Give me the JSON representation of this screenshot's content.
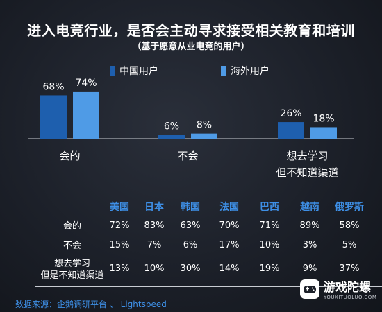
{
  "title": "进入电竞行业，是否会主动寻求接受相关教育和培训",
  "subtitle": "（基于愿意从业电竞的用户）",
  "colors": {
    "china": "#1e5fae",
    "overseas": "#4f9be6",
    "accent": "#3e8fe6"
  },
  "chart_data": [
    {
      "type": "bar",
      "categories": [
        "会的",
        "不会",
        "想去学习但不知道渠道"
      ],
      "category_lines": [
        [
          "会的"
        ],
        [
          "不会"
        ],
        [
          "想去学习",
          "但不知道渠道"
        ]
      ],
      "series": [
        {
          "name": "中国用户",
          "values": [
            68,
            6,
            26
          ],
          "labels": [
            "68%",
            "6%",
            "26%"
          ]
        },
        {
          "name": "海外用户",
          "values": [
            74,
            8,
            18
          ],
          "labels": [
            "74%",
            "8%",
            "18%"
          ]
        }
      ],
      "ylim": [
        0,
        100
      ],
      "legend": "top"
    },
    {
      "type": "table",
      "columns": [
        "美国",
        "日本",
        "韩国",
        "法国",
        "巴西",
        "越南",
        "俄罗斯"
      ],
      "rows": [
        {
          "label_lines": [
            "会的"
          ],
          "values": [
            "72%",
            "83%",
            "63%",
            "70%",
            "71%",
            "89%",
            "58%"
          ]
        },
        {
          "label_lines": [
            "不会"
          ],
          "values": [
            "15%",
            "7%",
            "6%",
            "17%",
            "10%",
            "3%",
            "5%"
          ]
        },
        {
          "label_lines": [
            "想去学习",
            "但是不知道渠道"
          ],
          "values": [
            "13%",
            "10%",
            "30%",
            "14%",
            "19%",
            "9%",
            "37%"
          ]
        }
      ]
    }
  ],
  "source": "数据来源：企鹅调研平台 、 Lightspeed",
  "watermark": {
    "cn": "游戏陀螺",
    "en": "YOUXITUOLUO.COM",
    "icon": "gamepad-logo-icon"
  }
}
